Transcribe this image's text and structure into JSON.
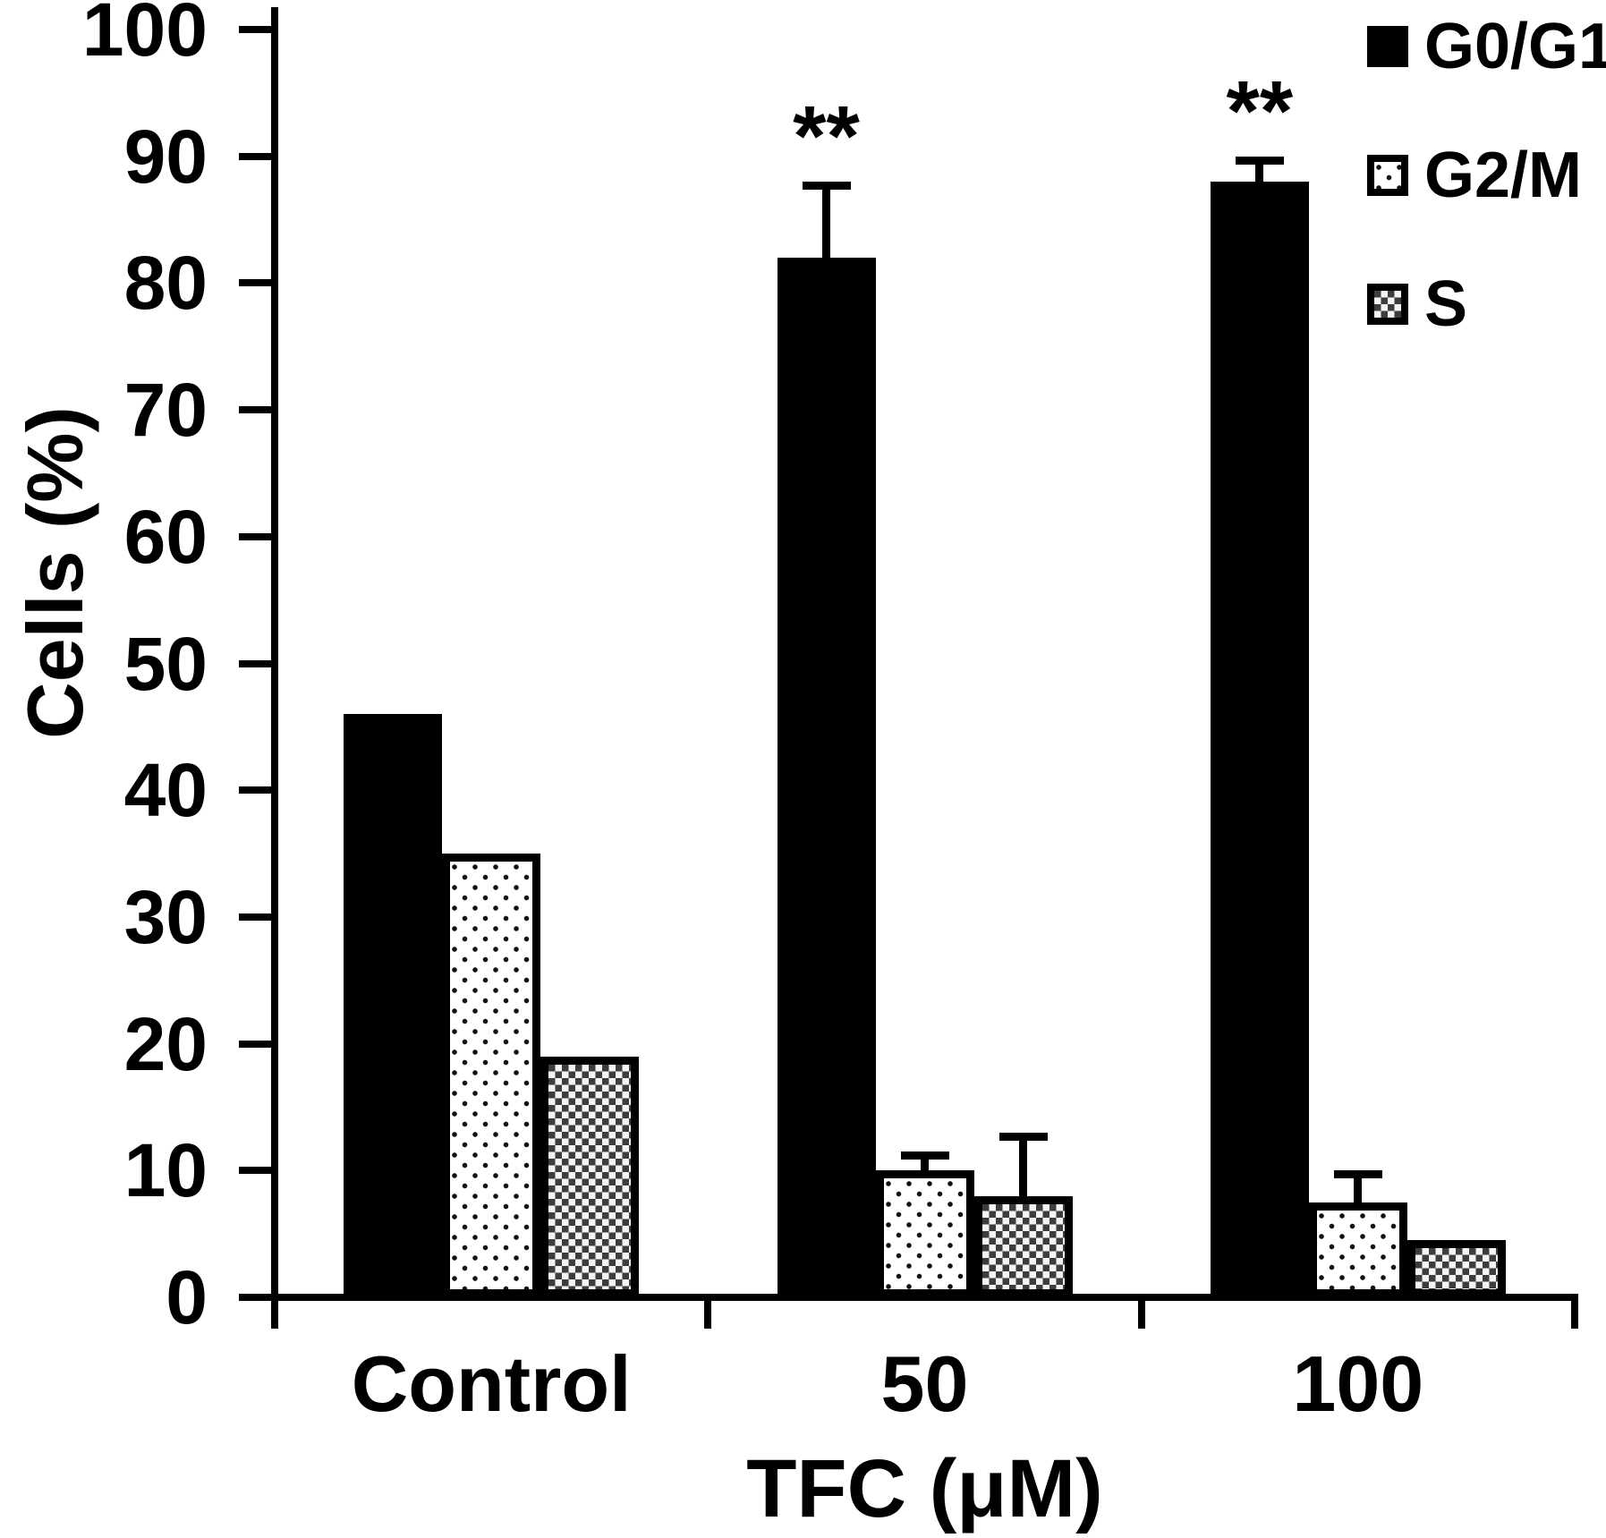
{
  "chart_data": {
    "type": "bar",
    "title": "",
    "xlabel": "TFC (μM)",
    "ylabel": "Cells (%)",
    "ylim": [
      0,
      100
    ],
    "y_ticks": [
      0,
      10,
      20,
      30,
      40,
      50,
      60,
      70,
      80,
      90,
      100
    ],
    "grid": false,
    "legend_position": "top-right",
    "categories": [
      "Control",
      "50",
      "100"
    ],
    "series": [
      {
        "name": "G0/G1",
        "pattern": "solid-black",
        "values": [
          46,
          82,
          88
        ],
        "errors_plus": [
          0,
          6,
          2
        ],
        "sig": [
          "",
          "**",
          "**"
        ]
      },
      {
        "name": "G2/M",
        "pattern": "white-dotted",
        "values": [
          35,
          10,
          7.5
        ],
        "errors_plus": [
          0,
          1.5,
          2.5
        ],
        "sig": [
          "",
          "",
          ""
        ]
      },
      {
        "name": "S",
        "pattern": "dark-checker",
        "values": [
          19,
          8,
          4.5
        ],
        "errors_plus": [
          0,
          5,
          0
        ],
        "sig": [
          "",
          "",
          ""
        ]
      }
    ],
    "colors": {
      "bar_black": "#000000",
      "checker_dark": "#3d3d3d",
      "background": "#ffffff"
    }
  }
}
